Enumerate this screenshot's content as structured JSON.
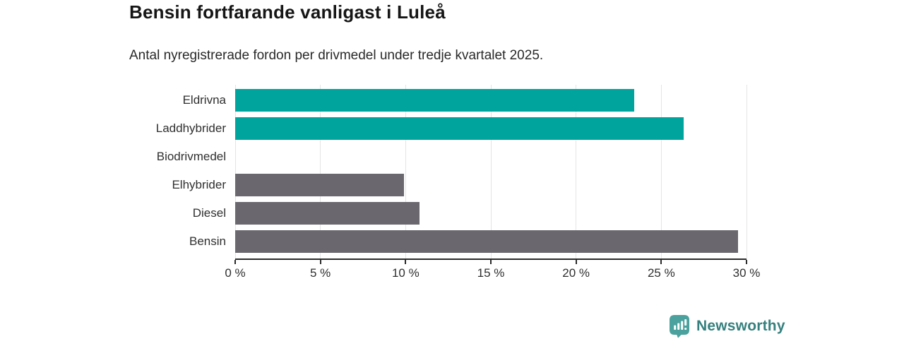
{
  "header": {
    "title": "Bensin fortfarande vanligast i Luleå",
    "subtitle": "Antal nyregistrerade fordon per drivmedel under tredje kvartalet 2025."
  },
  "chart_data": {
    "type": "bar",
    "orientation": "horizontal",
    "title": "Bensin fortfarande vanligast i Luleå",
    "subtitle": "Antal nyregistrerade fordon per drivmedel under tredje kvartalet 2025.",
    "categories": [
      "Eldrivna",
      "Laddhybrider",
      "Biodrivmedel",
      "Elhybrider",
      "Diesel",
      "Bensin"
    ],
    "values": [
      23.4,
      26.3,
      0,
      9.9,
      10.8,
      29.5
    ],
    "unit": "%",
    "xlim": [
      0,
      30
    ],
    "xticks": [
      0,
      5,
      10,
      15,
      20,
      25,
      30
    ],
    "xtick_labels": [
      "0 %",
      "5 %",
      "10 %",
      "15 %",
      "20 %",
      "25 %",
      "30 %"
    ],
    "bar_colors": [
      "#00a49c",
      "#00a49c",
      "#6b676e",
      "#6b676e",
      "#6b676e",
      "#6b676e"
    ],
    "accent_color": "#00a49c",
    "neutral_color": "#6b676e",
    "grid": true,
    "gridline_color": "#e4e4e4",
    "axis_color": "#2b2b2b",
    "legend": "none"
  },
  "branding": {
    "logo_text": "Newsworthy",
    "logo_text_color": "#35807e",
    "logo_icon_color": "#4ba19d"
  }
}
